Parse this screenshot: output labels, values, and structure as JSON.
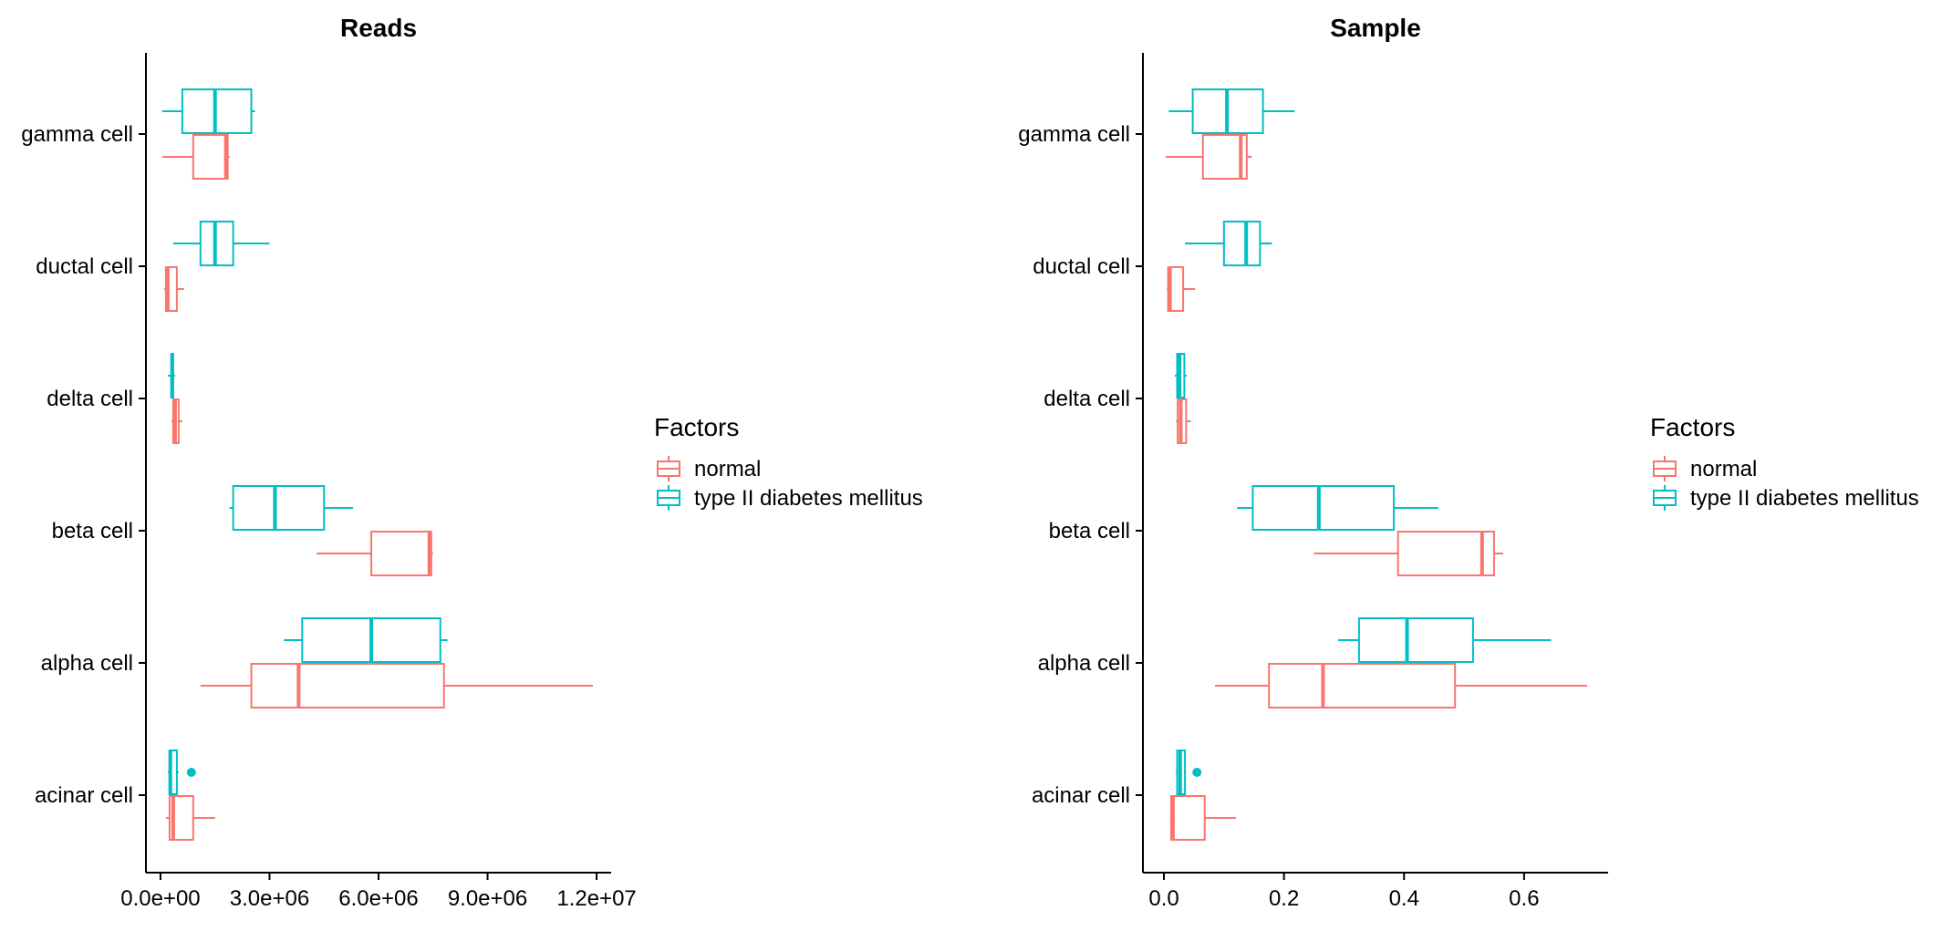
{
  "colors": {
    "normal": "#F8766D",
    "t2d": "#00BFC4",
    "axis": "#000000",
    "background": "#FFFFFF"
  },
  "chart_data": [
    {
      "type": "boxplot",
      "orientation": "horizontal",
      "title": "Reads",
      "categories": [
        "acinar cell",
        "alpha cell",
        "beta cell",
        "delta cell",
        "ductal cell",
        "gamma cell"
      ],
      "xlim": [
        -400000,
        12400000
      ],
      "xticks": [
        0,
        3000000,
        6000000,
        9000000,
        12000000
      ],
      "xtick_labels": [
        "0.0e+00",
        "3.0e+06",
        "6.0e+06",
        "9.0e+06",
        "1.2e+07"
      ],
      "grid": false,
      "legend_position": "right",
      "series": [
        {
          "name": "normal",
          "color": "#F8766D",
          "boxes": [
            {
              "category": "acinar cell",
              "min": 150000,
              "q1": 250000,
              "median": 350000,
              "q3": 900000,
              "max": 1500000,
              "outliers": []
            },
            {
              "category": "alpha cell",
              "min": 1100000,
              "q1": 2500000,
              "median": 3800000,
              "q3": 7800000,
              "max": 11900000,
              "outliers": []
            },
            {
              "category": "beta cell",
              "min": 4300000,
              "q1": 5800000,
              "median": 7400000,
              "q3": 7450000,
              "max": 7500000,
              "outliers": []
            },
            {
              "category": "delta cell",
              "min": 300000,
              "q1": 350000,
              "median": 400000,
              "q3": 500000,
              "max": 600000,
              "outliers": []
            },
            {
              "category": "ductal cell",
              "min": 100000,
              "q1": 150000,
              "median": 200000,
              "q3": 450000,
              "max": 650000,
              "outliers": []
            },
            {
              "category": "gamma cell",
              "min": 50000,
              "q1": 900000,
              "median": 1800000,
              "q3": 1850000,
              "max": 1900000,
              "outliers": []
            }
          ]
        },
        {
          "name": "type II diabetes mellitus",
          "color": "#00BFC4",
          "boxes": [
            {
              "category": "acinar cell",
              "min": 200000,
              "q1": 250000,
              "median": 270000,
              "q3": 450000,
              "max": 500000,
              "outliers": [
                850000
              ]
            },
            {
              "category": "alpha cell",
              "min": 3400000,
              "q1": 3900000,
              "median": 5800000,
              "q3": 7700000,
              "max": 7900000,
              "outliers": []
            },
            {
              "category": "beta cell",
              "min": 1900000,
              "q1": 2000000,
              "median": 3150000,
              "q3": 4500000,
              "max": 5300000,
              "outliers": []
            },
            {
              "category": "delta cell",
              "min": 200000,
              "q1": 300000,
              "median": 320000,
              "q3": 350000,
              "max": 400000,
              "outliers": []
            },
            {
              "category": "ductal cell",
              "min": 350000,
              "q1": 1100000,
              "median": 1500000,
              "q3": 2000000,
              "max": 3000000,
              "outliers": []
            },
            {
              "category": "gamma cell",
              "min": 50000,
              "q1": 600000,
              "median": 1500000,
              "q3": 2500000,
              "max": 2600000,
              "outliers": []
            }
          ]
        }
      ]
    },
    {
      "type": "boxplot",
      "orientation": "horizontal",
      "title": "Sample",
      "categories": [
        "acinar cell",
        "alpha cell",
        "beta cell",
        "delta cell",
        "ductal cell",
        "gamma cell"
      ],
      "xlim": [
        -0.035,
        0.74
      ],
      "xticks": [
        0,
        0.2,
        0.4,
        0.6
      ],
      "xtick_labels": [
        "0.0",
        "0.2",
        "0.4",
        "0.6"
      ],
      "grid": false,
      "legend_position": "right",
      "series": [
        {
          "name": "normal",
          "color": "#F8766D",
          "boxes": [
            {
              "category": "acinar cell",
              "min": 0.01,
              "q1": 0.012,
              "median": 0.015,
              "q3": 0.068,
              "max": 0.12,
              "outliers": []
            },
            {
              "category": "alpha cell",
              "min": 0.085,
              "q1": 0.175,
              "median": 0.265,
              "q3": 0.485,
              "max": 0.705,
              "outliers": []
            },
            {
              "category": "beta cell",
              "min": 0.25,
              "q1": 0.39,
              "median": 0.53,
              "q3": 0.55,
              "max": 0.565,
              "outliers": []
            },
            {
              "category": "delta cell",
              "min": 0.02,
              "q1": 0.023,
              "median": 0.028,
              "q3": 0.037,
              "max": 0.045,
              "outliers": []
            },
            {
              "category": "ductal cell",
              "min": 0.005,
              "q1": 0.007,
              "median": 0.01,
              "q3": 0.032,
              "max": 0.052,
              "outliers": []
            },
            {
              "category": "gamma cell",
              "min": 0.003,
              "q1": 0.065,
              "median": 0.128,
              "q3": 0.138,
              "max": 0.146,
              "outliers": []
            }
          ]
        },
        {
          "name": "type II diabetes mellitus",
          "color": "#00BFC4",
          "boxes": [
            {
              "category": "acinar cell",
              "min": 0.02,
              "q1": 0.022,
              "median": 0.027,
              "q3": 0.035,
              "max": 0.037,
              "outliers": [
                0.055
              ]
            },
            {
              "category": "alpha cell",
              "min": 0.29,
              "q1": 0.325,
              "median": 0.405,
              "q3": 0.515,
              "max": 0.645,
              "outliers": []
            },
            {
              "category": "beta cell",
              "min": 0.122,
              "q1": 0.148,
              "median": 0.258,
              "q3": 0.383,
              "max": 0.457,
              "outliers": []
            },
            {
              "category": "delta cell",
              "min": 0.018,
              "q1": 0.022,
              "median": 0.026,
              "q3": 0.034,
              "max": 0.038,
              "outliers": []
            },
            {
              "category": "ductal cell",
              "min": 0.035,
              "q1": 0.1,
              "median": 0.137,
              "q3": 0.16,
              "max": 0.18,
              "outliers": []
            },
            {
              "category": "gamma cell",
              "min": 0.008,
              "q1": 0.048,
              "median": 0.105,
              "q3": 0.165,
              "max": 0.218,
              "outliers": []
            }
          ]
        }
      ]
    }
  ],
  "legend": {
    "title": "Factors",
    "items": [
      {
        "label": "normal",
        "color": "#F8766D"
      },
      {
        "label": "type II diabetes mellitus",
        "color": "#00BFC4"
      }
    ]
  }
}
